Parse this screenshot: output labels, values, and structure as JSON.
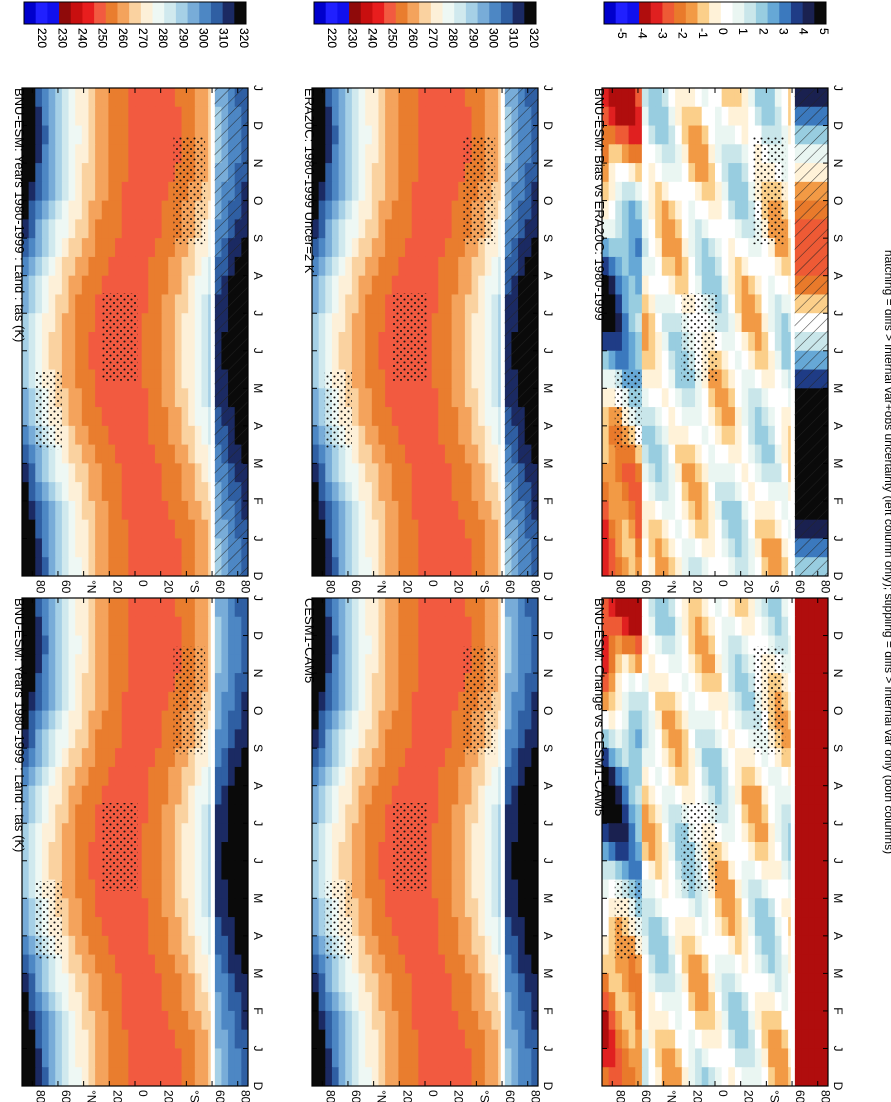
{
  "figure": {
    "footnote": "hatching = diffs > internal var+obs uncertainty (left column only); stippling = diffs > internal var only (both columns)"
  },
  "colors": {
    "abs_scale": [
      "#0a0a0a",
      "#1b2a63",
      "#2f5fa3",
      "#4d87c4",
      "#78acd8",
      "#a6d0e6",
      "#d0e9ee",
      "#eef8f4",
      "#fdf0d8",
      "#fad2a0",
      "#f4a35c",
      "#e97d2e",
      "#f25a40",
      "#e81e1e",
      "#c80f0f",
      "#8f0a0a",
      "#1010ee",
      "#2020ff",
      "#0000cc"
    ],
    "diff_scale": [
      "#0a0a0a",
      "#1a2150",
      "#1f3c86",
      "#3b79be",
      "#66a8d6",
      "#98cde0",
      "#c9e6ea",
      "#eaf6f2",
      "#ffffff",
      "#fff2d8",
      "#fbcf8a",
      "#f29a45",
      "#e97a2b",
      "#ee5a35",
      "#e02020",
      "#b00d0d",
      "#1010ee",
      "#2020ff",
      "#0000cc"
    ]
  },
  "chart_data": [
    {
      "type": "heatmap",
      "title": "BNU-ESM: Years 1980-1999 : Land : tas (K)",
      "x_categories": [
        "D",
        "J",
        "F",
        "M",
        "A",
        "M",
        "J",
        "J",
        "A",
        "S",
        "O",
        "N",
        "D",
        "J"
      ],
      "y_tick_labels": [
        "80",
        "60",
        "°N",
        "20",
        "0",
        "20",
        "°S",
        "60",
        "80"
      ],
      "y_tick_values": [
        80,
        60,
        40,
        20,
        0,
        -20,
        -40,
        -60,
        -80
      ],
      "colorbar": {
        "levels": [
          320,
          310,
          300,
          290,
          280,
          270,
          260,
          250,
          240,
          230,
          220
        ],
        "units": "K"
      },
      "overlay": [
        "hatching",
        "stippling"
      ]
    },
    {
      "type": "heatmap",
      "title": "BNU-ESM: Years 1980-1999 : Land : tas (K)",
      "x_categories": [
        "D",
        "J",
        "F",
        "M",
        "A",
        "M",
        "J",
        "J",
        "A",
        "S",
        "O",
        "N",
        "D",
        "J"
      ],
      "y_tick_labels": [
        "80",
        "60",
        "°N",
        "20",
        "0",
        "20",
        "°S",
        "60",
        "80"
      ],
      "y_tick_values": [
        80,
        60,
        40,
        20,
        0,
        -20,
        -40,
        -60,
        -80
      ],
      "colorbar": {
        "levels": [
          320,
          310,
          300,
          290,
          280,
          270,
          260,
          250,
          240,
          230,
          220
        ],
        "units": "K"
      },
      "overlay": [
        "stippling"
      ]
    },
    {
      "type": "heatmap",
      "title": "ERA20C: 1980-1999 Uncer=2 K",
      "x_categories": [
        "D",
        "J",
        "F",
        "M",
        "A",
        "M",
        "J",
        "J",
        "A",
        "S",
        "O",
        "N",
        "D",
        "J"
      ],
      "y_tick_labels": [
        "80",
        "60",
        "°N",
        "20",
        "0",
        "20",
        "°S",
        "60",
        "80"
      ],
      "y_tick_values": [
        80,
        60,
        40,
        20,
        0,
        -20,
        -40,
        -60,
        -80
      ],
      "colorbar": {
        "levels": [
          320,
          310,
          300,
          290,
          280,
          270,
          260,
          250,
          240,
          230,
          220
        ],
        "units": "K"
      },
      "overlay": [
        "hatching",
        "stippling"
      ]
    },
    {
      "type": "heatmap",
      "title": "CESM1-CAM5",
      "x_categories": [
        "D",
        "J",
        "F",
        "M",
        "A",
        "M",
        "J",
        "J",
        "A",
        "S",
        "O",
        "N",
        "D",
        "J"
      ],
      "y_tick_labels": [
        "80",
        "60",
        "°N",
        "20",
        "0",
        "20",
        "°S",
        "60",
        "80"
      ],
      "y_tick_values": [
        80,
        60,
        40,
        20,
        0,
        -20,
        -40,
        -60,
        -80
      ],
      "colorbar": {
        "levels": [
          320,
          310,
          300,
          290,
          280,
          270,
          260,
          250,
          240,
          230,
          220
        ],
        "units": "K"
      },
      "overlay": [
        "stippling"
      ]
    },
    {
      "type": "heatmap",
      "title": "BNU-ESM: Bias vs ERA20C: 1980-1999",
      "x_categories": [
        "D",
        "J",
        "F",
        "M",
        "A",
        "M",
        "J",
        "J",
        "A",
        "S",
        "O",
        "N",
        "D",
        "J"
      ],
      "y_tick_labels": [
        "80",
        "60",
        "°N",
        "20",
        "0",
        "20",
        "°S",
        "60",
        "80"
      ],
      "y_tick_values": [
        80,
        60,
        40,
        20,
        0,
        -20,
        -40,
        -60,
        -80
      ],
      "colorbar": {
        "levels": [
          5,
          4,
          3,
          2,
          1,
          0,
          -1,
          -2,
          -3,
          -4,
          -5
        ],
        "units": "K"
      },
      "overlay": [
        "hatching",
        "stippling"
      ]
    },
    {
      "type": "heatmap",
      "title": "BNU-ESM: Change vs CESM1-CAM5",
      "x_categories": [
        "D",
        "J",
        "F",
        "M",
        "A",
        "M",
        "J",
        "J",
        "A",
        "S",
        "O",
        "N",
        "D",
        "J"
      ],
      "y_tick_labels": [
        "80",
        "60",
        "°N",
        "20",
        "0",
        "20",
        "°S",
        "60",
        "80"
      ],
      "y_tick_values": [
        80,
        60,
        40,
        20,
        0,
        -20,
        -40,
        -60,
        -80
      ],
      "colorbar": {
        "levels": [
          5,
          4,
          3,
          2,
          1,
          0,
          -1,
          -2,
          -3,
          -4,
          -5
        ],
        "units": "K"
      },
      "overlay": [
        "stippling"
      ]
    }
  ]
}
